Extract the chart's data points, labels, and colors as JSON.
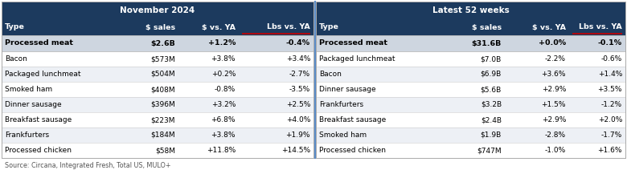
{
  "title_nov": "November 2024",
  "title_52": "Latest 52 weeks",
  "header_bg": "#1c3a5e",
  "header_fg": "#ffffff",
  "bold_row_bg": "#ced6e0",
  "alt_row_bg": "#edf0f5",
  "white_row_bg": "#ffffff",
  "source_text": "Source: Circana, Integrated Fresh, Total US, MULO+",
  "nov_headers": [
    "Type",
    "$ sales",
    "$ vs. YA",
    "Lbs vs. YA"
  ],
  "w52_headers": [
    "Type",
    "$ sales",
    "$ vs. YA",
    "Lbs vs. YA"
  ],
  "nov_bold_row": [
    "Processed meat",
    "$2.6B",
    "+1.2%",
    "-0.4%"
  ],
  "nov_rows": [
    [
      "Bacon",
      "$573M",
      "+3.8%",
      "+3.4%"
    ],
    [
      "Packaged lunchmeat",
      "$504M",
      "+0.2%",
      "-2.7%"
    ],
    [
      "Smoked ham",
      "$408M",
      "-0.8%",
      "-3.5%"
    ],
    [
      "Dinner sausage",
      "$396M",
      "+3.2%",
      "+2.5%"
    ],
    [
      "Breakfast sausage",
      "$223M",
      "+6.8%",
      "+4.0%"
    ],
    [
      "Frankfurters",
      "$184M",
      "+3.8%",
      "+1.9%"
    ],
    [
      "Processed chicken",
      "$58M",
      "+11.8%",
      "+14.5%"
    ]
  ],
  "w52_bold_row": [
    "Processed meat",
    "$31.6B",
    "+0.0%",
    "-0.1%"
  ],
  "w52_rows": [
    [
      "Packaged lunchmeat",
      "$7.0B",
      "-2.2%",
      "-0.6%"
    ],
    [
      "Bacon",
      "$6.9B",
      "+3.6%",
      "+1.4%"
    ],
    [
      "Dinner sausage",
      "$5.6B",
      "+2.9%",
      "+3.5%"
    ],
    [
      "Frankfurters",
      "$3.2B",
      "+1.5%",
      "-1.2%"
    ],
    [
      "Breakfast sausage",
      "$2.4B",
      "+2.9%",
      "+2.0%"
    ],
    [
      "Smoked ham",
      "$1.9B",
      "-2.8%",
      "-1.7%"
    ],
    [
      "Processed chicken",
      "$747M",
      "-1.0%",
      "+1.6%"
    ]
  ],
  "lbs_underline_color": "#cc0000"
}
